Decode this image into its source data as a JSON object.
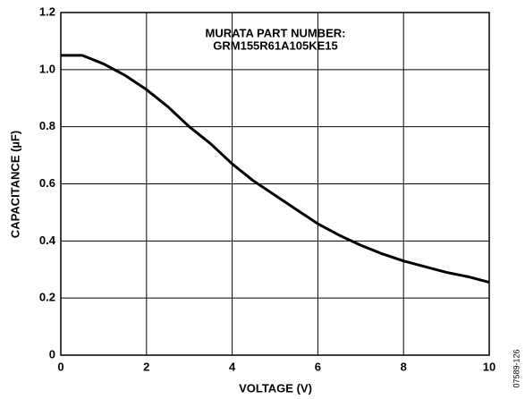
{
  "chart_data": {
    "type": "line",
    "xlabel": "VOLTAGE (V)",
    "ylabel": "CAPACITANCE (µF)",
    "annotations": [
      "MURATA PART NUMBER:",
      "GRM155R61A105KE15"
    ],
    "figure_id": "07589-126",
    "x": [
      0,
      0.5,
      1,
      1.5,
      2,
      2.5,
      3,
      3.5,
      4,
      4.5,
      5,
      5.5,
      6,
      6.5,
      7,
      7.5,
      8,
      8.5,
      9,
      9.5,
      10
    ],
    "series": [
      {
        "name": "GRM155R61A105KE15",
        "color": "#000000",
        "values": [
          1.05,
          1.05,
          1.02,
          0.98,
          0.93,
          0.87,
          0.8,
          0.74,
          0.67,
          0.61,
          0.56,
          0.51,
          0.46,
          0.42,
          0.385,
          0.355,
          0.33,
          0.31,
          0.29,
          0.275,
          0.255
        ]
      }
    ],
    "xlim": [
      0,
      10
    ],
    "xticks": [
      0,
      2,
      4,
      6,
      8,
      10
    ],
    "ylim": [
      0,
      1.2
    ],
    "yticks": [
      0,
      0.2,
      0.4,
      0.6,
      0.8,
      {
        "value": 1,
        "label": "1.0"
      },
      1.2
    ],
    "grid": true
  }
}
